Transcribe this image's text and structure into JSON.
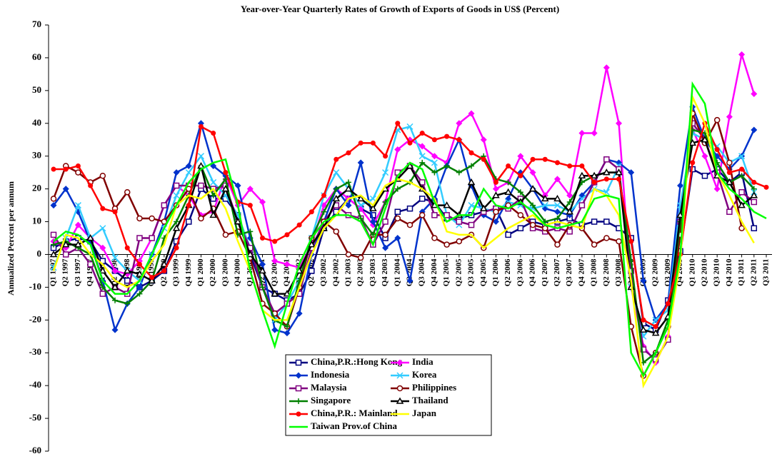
{
  "chart_data": {
    "type": "line",
    "title": "Year-over-Year Quarterly Rates of Growth of Exports of Goods in US$ (Percent)",
    "y_label": "Annualized Percent per annum",
    "categories": [
      "Q1 1997",
      "Q2 1997",
      "Q3 1997",
      "Q4 1997",
      "Q1 1998",
      "Q2 1998",
      "Q3 1998",
      "Q4 1998",
      "Q1 1999",
      "Q2 1999",
      "Q3 1999",
      "Q4 1999",
      "Q1 2000",
      "Q2 2000",
      "Q3 2000",
      "Q4 2000",
      "Q1 2001",
      "Q2 2001",
      "Q3 2001",
      "Q4 2001",
      "Q1 2002",
      "Q2 2002",
      "Q3 2002",
      "Q4 2002",
      "Q1 2003",
      "Q2 2003",
      "Q3 2003",
      "Q4 2003",
      "Q1 2004",
      "Q2 2004",
      "Q3 2004",
      "Q4 2004",
      "Q1 2005",
      "Q2 2005",
      "Q3 2005",
      "Q4 2005",
      "Q1 2006",
      "Q2 2006",
      "Q3 2006",
      "Q4 2006",
      "Q1 2007",
      "Q2 2007",
      "Q3 2007",
      "Q4 2007",
      "Q1 2008",
      "Q2 2008",
      "Q3 2008",
      "Q4 2008",
      "Q1 2009",
      "Q2 2009",
      "Q3 2009",
      "Q4 2009",
      "Q1 2010",
      "Q2 2010",
      "Q3 2010",
      "Q4 2010",
      "Q1 2011",
      "Q2 2011",
      "Q3 2011"
    ],
    "ylim": [
      -60,
      70
    ],
    "yticks": [
      -60,
      -50,
      -40,
      -30,
      -20,
      -10,
      0,
      10,
      20,
      30,
      40,
      50,
      60,
      70
    ],
    "legend": "bottom-center",
    "series": [
      {
        "name": "China,P.R.:Hong Kong",
        "color": "#000080",
        "marker": "square",
        "values": [
          2,
          4,
          5,
          4,
          -2,
          -5,
          -8,
          -10,
          -8,
          -5,
          4,
          10,
          20,
          17,
          17,
          12,
          0,
          -10,
          -12,
          -14,
          -12,
          -5,
          8,
          13,
          17,
          14,
          12,
          5,
          13,
          14,
          17,
          16,
          11,
          11,
          12,
          13,
          14,
          6,
          8,
          10,
          9,
          10,
          11,
          9,
          10,
          10,
          8,
          5,
          -21,
          -23,
          -14,
          1,
          26,
          24,
          26,
          22,
          25,
          8,
          null
        ]
      },
      {
        "name": "India",
        "color": "#ff00ff",
        "marker": "diamond",
        "values": [
          4,
          2,
          9,
          5,
          2,
          -5,
          -6,
          -2,
          5,
          15,
          21,
          18,
          12,
          13,
          24,
          15,
          20,
          16,
          -2,
          -3,
          -4,
          3,
          15,
          20,
          17,
          14,
          9,
          16,
          32,
          35,
          33,
          30,
          28,
          40,
          43,
          35,
          20,
          22,
          30,
          25,
          18,
          23,
          18,
          37,
          37,
          57,
          40,
          -10,
          -28,
          -33,
          -25,
          13,
          38,
          30,
          20,
          42,
          61,
          49,
          null
        ]
      },
      {
        "name": "Indonesia",
        "color": "#0033cc",
        "marker": "diamond",
        "values": [
          15,
          20,
          13,
          4,
          -8,
          -23,
          -15,
          -10,
          0,
          10,
          25,
          27,
          40,
          27,
          24,
          21,
          5,
          -3,
          -23,
          -24,
          -18,
          0,
          10,
          20,
          15,
          28,
          10,
          2,
          5,
          -8,
          13,
          17,
          27,
          35,
          21,
          12,
          10,
          17,
          25,
          20,
          14,
          13,
          12,
          18,
          22,
          29,
          28,
          25,
          -8,
          -20,
          -15,
          21,
          45,
          35,
          30,
          26,
          30,
          38,
          null
        ]
      },
      {
        "name": "Korea",
        "color": "#33ccff",
        "marker": "cross",
        "values": [
          -4,
          5,
          15,
          5,
          8,
          -1,
          -5,
          -8,
          0,
          8,
          18,
          25,
          30,
          22,
          18,
          12,
          2,
          -10,
          -20,
          -15,
          -8,
          5,
          18,
          25,
          20,
          15,
          17,
          25,
          38,
          39,
          30,
          28,
          12,
          9,
          15,
          14,
          13,
          16,
          15,
          14,
          15,
          15,
          13,
          17,
          20,
          19,
          27,
          -10,
          -25,
          -20,
          -17,
          15,
          37,
          35,
          33,
          28,
          30,
          19,
          null
        ]
      },
      {
        "name": "Malaysia",
        "color": "#800080",
        "marker": "square",
        "values": [
          6,
          0,
          2,
          -3,
          -12,
          -10,
          -12,
          5,
          5,
          15,
          21,
          21,
          21,
          20,
          21,
          10,
          2,
          -10,
          -18,
          -15,
          -12,
          2,
          10,
          15,
          12,
          11,
          3,
          10,
          25,
          27,
          22,
          12,
          12,
          10,
          9,
          13,
          14,
          14,
          17,
          8,
          7,
          8,
          7,
          15,
          22,
          29,
          26,
          -5,
          -29,
          -32,
          -26,
          10,
          40,
          35,
          25,
          13,
          19,
          16,
          null
        ]
      },
      {
        "name": "Philippines",
        "color": "#800000",
        "marker": "circle",
        "values": [
          17,
          27,
          25,
          22,
          24,
          14,
          19,
          11,
          11,
          10,
          15,
          20,
          11,
          14,
          6,
          7,
          -1,
          -15,
          -18,
          -22,
          -10,
          5,
          10,
          7,
          0,
          -1,
          6,
          6,
          11,
          9,
          12,
          5,
          3,
          4,
          6,
          2,
          13,
          15,
          12,
          9,
          8,
          3,
          9,
          8,
          3,
          5,
          4,
          -22,
          -37,
          -30,
          -22,
          6,
          43,
          34,
          41,
          28,
          8,
          null,
          null
        ]
      },
      {
        "name": "Singapore",
        "color": "#008000",
        "marker": "plus",
        "values": [
          3,
          4,
          2,
          0,
          -10,
          -14,
          -15,
          -12,
          -8,
          5,
          10,
          18,
          27,
          18,
          23,
          6,
          7,
          -10,
          -20,
          -22,
          -8,
          5,
          13,
          20,
          22,
          11,
          6,
          16,
          20,
          22,
          28,
          25,
          27,
          25,
          27,
          30,
          23,
          22,
          19,
          15,
          10,
          11,
          16,
          22,
          24,
          25,
          25,
          -2,
          -33,
          -30,
          -20,
          10,
          38,
          37,
          28,
          22,
          24,
          20,
          null
        ]
      },
      {
        "name": "Thailand",
        "color": "#000000",
        "marker": "triangle",
        "values": [
          0,
          3,
          3,
          5,
          -5,
          -10,
          -5,
          -6,
          -8,
          -3,
          8,
          15,
          27,
          12,
          20,
          10,
          0,
          -5,
          -12,
          -12,
          -5,
          3,
          8,
          17,
          20,
          17,
          14,
          20,
          23,
          27,
          20,
          15,
          15,
          12,
          22,
          14,
          18,
          19,
          16,
          20,
          17,
          17,
          13,
          24,
          24,
          25,
          25,
          -10,
          -23,
          -24,
          -19,
          12,
          34,
          35,
          24,
          22,
          15,
          18,
          null
        ]
      },
      {
        "name": "China,P.R.: Mainland",
        "color": "#ff0000",
        "marker": "dot",
        "values": [
          26,
          26,
          27,
          21,
          14,
          13,
          2,
          -3,
          -7,
          -5,
          2,
          15,
          39,
          37,
          25,
          16,
          15,
          5,
          4,
          6,
          9,
          13,
          18,
          29,
          31,
          34,
          34,
          30,
          40,
          34,
          37,
          35,
          36,
          35,
          31,
          29,
          22,
          27,
          24,
          29,
          29,
          28,
          27,
          27,
          22,
          23,
          23,
          4,
          -20,
          -22,
          -15,
          0,
          28,
          40,
          32,
          25,
          26,
          22,
          20.5
        ]
      },
      {
        "name": "Japan",
        "color": "#ffff00",
        "marker": "none",
        "values": [
          -5,
          6,
          5,
          0,
          -3,
          -8,
          -10,
          -8,
          -2,
          3,
          15,
          18,
          17,
          20,
          14,
          4,
          -5,
          -17,
          -20,
          -20,
          -10,
          0,
          8,
          12,
          17,
          18,
          15,
          21,
          23,
          22,
          20,
          17,
          7,
          6,
          6,
          2,
          5,
          8,
          10,
          12,
          9,
          10,
          9,
          8,
          20,
          18,
          12,
          -8,
          -40,
          -33,
          -25,
          -2,
          48,
          40,
          25,
          18,
          10,
          3.5,
          null
        ]
      },
      {
        "name": "Taiwan Prov.of China",
        "color": "#00ff00",
        "marker": "none",
        "values": [
          4,
          7,
          6,
          3,
          -8,
          -12,
          -12,
          -8,
          0,
          8,
          15,
          22,
          26,
          28,
          29,
          15,
          -5,
          -17,
          -28,
          -15,
          -3,
          5,
          10,
          12,
          12,
          10,
          3,
          14,
          24,
          28,
          26,
          16,
          10,
          12,
          12,
          20,
          15,
          14,
          16,
          13,
          9,
          8,
          9,
          10,
          17,
          18,
          17,
          -30,
          -37,
          -30,
          -22,
          0,
          52,
          46,
          25,
          20,
          17,
          13,
          11
        ]
      }
    ]
  }
}
